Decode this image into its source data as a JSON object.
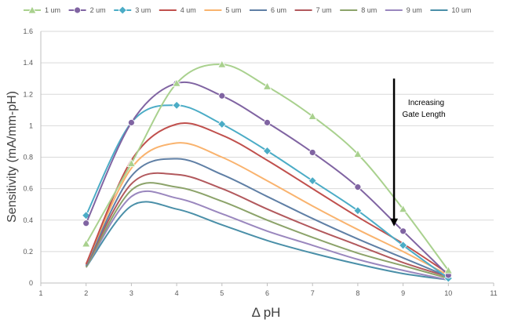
{
  "chart_data": {
    "type": "line",
    "xlabel": "Δ pH",
    "ylabel": "Sensitivity (mA/mm-pH)",
    "xlim": [
      1,
      11
    ],
    "ylim": [
      0,
      1.6
    ],
    "x_ticks": [
      "1",
      "2",
      "3",
      "4",
      "5",
      "6",
      "7",
      "8",
      "9",
      "10",
      "11"
    ],
    "y_ticks": [
      "0",
      "0.2",
      "0.4",
      "0.6",
      "0.8",
      "1",
      "1.2",
      "1.4",
      "1.6"
    ],
    "grid": "horizontal",
    "legend_position": "top",
    "x": [
      2,
      3,
      4,
      5,
      6,
      7,
      8,
      9,
      10
    ],
    "series": [
      {
        "name": "1 um",
        "color": "#A9D18E",
        "marker": "triangle",
        "values": [
          0.25,
          0.76,
          1.27,
          1.39,
          1.25,
          1.06,
          0.82,
          0.47,
          0.08
        ]
      },
      {
        "name": "2 um",
        "color": "#8064A2",
        "marker": "circle",
        "values": [
          0.38,
          1.02,
          1.27,
          1.19,
          1.02,
          0.83,
          0.61,
          0.33,
          0.05
        ]
      },
      {
        "name": "3 um",
        "color": "#4BACC6",
        "marker": "diamond",
        "values": [
          0.43,
          1.02,
          1.13,
          1.01,
          0.84,
          0.65,
          0.46,
          0.24,
          0.03
        ]
      },
      {
        "name": "4 um",
        "color": "#C0504D",
        "marker": "none",
        "values": [
          0.12,
          0.78,
          1.01,
          0.94,
          0.78,
          0.6,
          0.42,
          0.25,
          0.06
        ]
      },
      {
        "name": "5 um",
        "color": "#F9B36E",
        "marker": "none",
        "values": [
          0.12,
          0.73,
          0.89,
          0.8,
          0.65,
          0.49,
          0.34,
          0.2,
          0.05
        ]
      },
      {
        "name": "6 um",
        "color": "#5F7FA5",
        "marker": "none",
        "values": [
          0.11,
          0.68,
          0.79,
          0.69,
          0.55,
          0.41,
          0.28,
          0.16,
          0.04
        ]
      },
      {
        "name": "7 um",
        "color": "#B2595D",
        "marker": "none",
        "values": [
          0.11,
          0.63,
          0.69,
          0.6,
          0.47,
          0.35,
          0.24,
          0.13,
          0.04
        ]
      },
      {
        "name": "8 um",
        "color": "#8CA36A",
        "marker": "none",
        "values": [
          0.1,
          0.59,
          0.61,
          0.52,
          0.4,
          0.29,
          0.19,
          0.11,
          0.03
        ]
      },
      {
        "name": "9 um",
        "color": "#9A87BE",
        "marker": "none",
        "values": [
          0.1,
          0.55,
          0.54,
          0.44,
          0.33,
          0.24,
          0.15,
          0.08,
          0.02
        ]
      },
      {
        "name": "10 um",
        "color": "#4A8FA8",
        "marker": "none",
        "values": [
          0.1,
          0.49,
          0.47,
          0.37,
          0.27,
          0.19,
          0.12,
          0.06,
          0.02
        ]
      }
    ],
    "annotation": {
      "lines": [
        "Increasing",
        "Gate Length"
      ],
      "arrow_x": 8.8,
      "arrow_y_from": 1.3,
      "arrow_y_to": 0.36
    }
  }
}
